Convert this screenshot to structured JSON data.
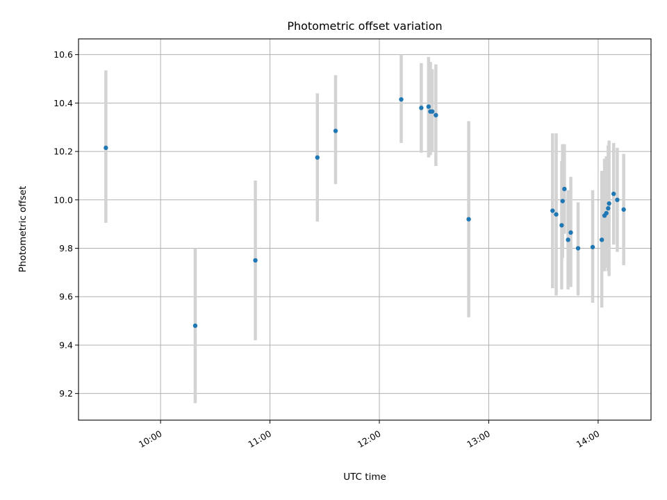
{
  "chart_data": {
    "type": "scatter",
    "title": "Photometric offset variation",
    "xlabel": "UTC time",
    "ylabel": "Photometric offset",
    "xlim": [
      "09:15",
      "14:29"
    ],
    "ylim": [
      9.09,
      10.665
    ],
    "x_ticks": [
      "10:00",
      "11:00",
      "12:00",
      "13:00",
      "14:00"
    ],
    "y_ticks": [
      "9.2",
      "9.4",
      "9.6",
      "9.8",
      "10.0",
      "10.2",
      "10.4",
      "10.6"
    ],
    "grid": true,
    "colors": {
      "points": "#1f77b4",
      "error_bars": "#d3d3d3"
    },
    "series": [
      {
        "points": [
          {
            "x": "09:30",
            "y": 10.215,
            "ylow": 9.905,
            "yhigh": 10.535
          },
          {
            "x": "10:19",
            "y": 9.48,
            "ylow": 9.16,
            "yhigh": 9.8
          },
          {
            "x": "10:52",
            "y": 9.75,
            "ylow": 9.42,
            "yhigh": 10.08
          },
          {
            "x": "11:26",
            "y": 10.175,
            "ylow": 9.91,
            "yhigh": 10.44
          },
          {
            "x": "11:36",
            "y": 10.285,
            "ylow": 10.065,
            "yhigh": 10.515
          },
          {
            "x": "12:12",
            "y": 10.415,
            "ylow": 10.235,
            "yhigh": 10.6
          },
          {
            "x": "12:23",
            "y": 10.38,
            "ylow": 10.195,
            "yhigh": 10.565
          },
          {
            "x": "12:27",
            "y": 10.385,
            "ylow": 10.175,
            "yhigh": 10.59
          },
          {
            "x": "12:28",
            "y": 10.365,
            "ylow": 10.185,
            "yhigh": 10.57
          },
          {
            "x": "12:29",
            "y": 10.365,
            "ylow": 10.2,
            "yhigh": 10.54
          },
          {
            "x": "12:31",
            "y": 10.35,
            "ylow": 10.14,
            "yhigh": 10.56
          },
          {
            "x": "12:49",
            "y": 9.92,
            "ylow": 9.515,
            "yhigh": 10.325
          },
          {
            "x": "13:35",
            "y": 9.955,
            "ylow": 9.635,
            "yhigh": 10.275
          },
          {
            "x": "13:37",
            "y": 9.94,
            "ylow": 9.605,
            "yhigh": 10.275
          },
          {
            "x": "13:40",
            "y": 9.895,
            "ylow": 9.63,
            "yhigh": 10.16
          },
          {
            "x": "13:40.5",
            "y": 9.995,
            "ylow": 9.76,
            "yhigh": 10.23
          },
          {
            "x": "13:41.5",
            "y": 10.045,
            "ylow": 9.86,
            "yhigh": 10.23
          },
          {
            "x": "13:43.5",
            "y": 9.835,
            "ylow": 9.63,
            "yhigh": 10.04
          },
          {
            "x": "13:45",
            "y": 9.865,
            "ylow": 9.64,
            "yhigh": 10.095
          },
          {
            "x": "13:49",
            "y": 9.8,
            "ylow": 9.605,
            "yhigh": 9.99
          },
          {
            "x": "13:57",
            "y": 9.805,
            "ylow": 9.575,
            "yhigh": 10.04
          },
          {
            "x": "14:02",
            "y": 9.835,
            "ylow": 9.555,
            "yhigh": 10.12
          },
          {
            "x": "14:03.5",
            "y": 9.935,
            "ylow": 9.705,
            "yhigh": 10.17
          },
          {
            "x": "14:04.5",
            "y": 9.945,
            "ylow": 9.72,
            "yhigh": 10.18
          },
          {
            "x": "14:05.5",
            "y": 9.965,
            "ylow": 9.705,
            "yhigh": 10.225
          },
          {
            "x": "14:06",
            "y": 9.985,
            "ylow": 9.685,
            "yhigh": 10.245
          },
          {
            "x": "14:08.5",
            "y": 10.025,
            "ylow": 9.815,
            "yhigh": 10.235
          },
          {
            "x": "14:10.5",
            "y": 10.0,
            "ylow": 9.785,
            "yhigh": 10.215
          },
          {
            "x": "14:14",
            "y": 9.96,
            "ylow": 9.73,
            "yhigh": 10.19
          }
        ]
      }
    ]
  }
}
